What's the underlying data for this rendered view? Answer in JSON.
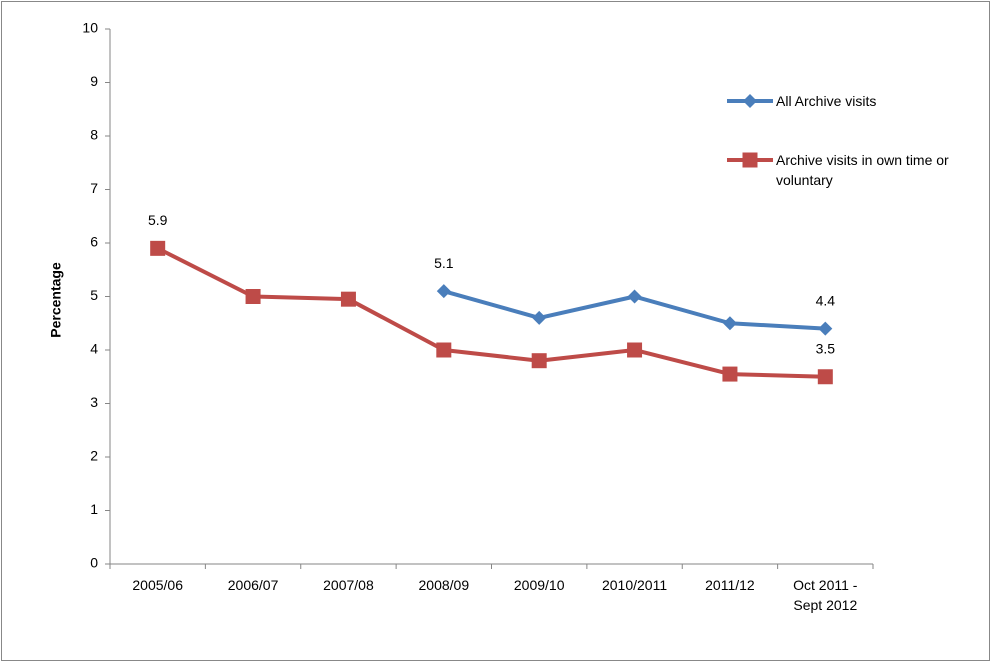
{
  "chart_data": {
    "type": "line",
    "y_label": "Percentage",
    "categories": [
      "2005/06",
      "2006/07",
      "2007/08",
      "2008/09",
      "2009/10",
      "2010/2011",
      "2011/12",
      "Oct 2011 - Sept 2012"
    ],
    "series": [
      {
        "name": "All Archive visits",
        "color": "#4a7ebb",
        "marker": "diamond",
        "values": [
          null,
          null,
          null,
          5.1,
          4.6,
          5.0,
          4.5,
          4.4
        ],
        "value_labels": [
          null,
          null,
          null,
          "5.1",
          null,
          null,
          null,
          "4.4"
        ]
      },
      {
        "name": "Archive visits in own time or voluntary",
        "color": "#be4b48",
        "marker": "square",
        "values": [
          5.9,
          5.0,
          4.95,
          4.0,
          3.8,
          4.0,
          3.55,
          3.5
        ],
        "value_labels": [
          "5.9",
          null,
          null,
          null,
          null,
          null,
          null,
          "3.5"
        ]
      }
    ],
    "ylim": [
      0,
      10
    ],
    "yticks": [
      0,
      1,
      2,
      3,
      4,
      5,
      6,
      7,
      8,
      9,
      10
    ],
    "grid": false,
    "legend": "top-right"
  }
}
